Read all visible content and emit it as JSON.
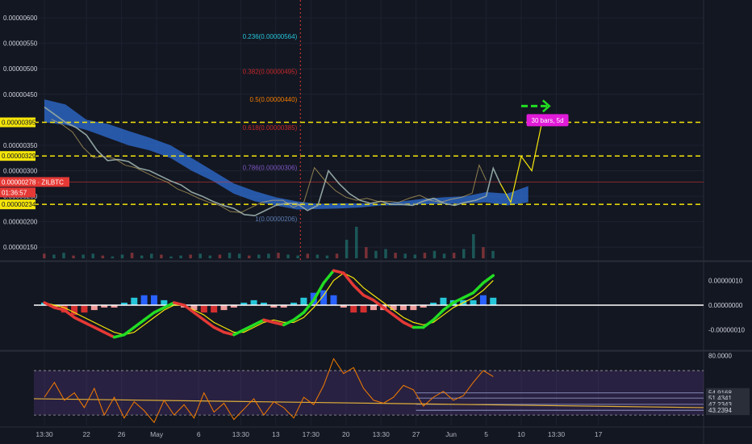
{
  "chart_data": {
    "type": "line",
    "symbol": "ZILBTC",
    "countdown": "01:36:57",
    "last_price": "0.00000278",
    "price_axis": {
      "ticks": [
        "0.00000600",
        "0.00000550",
        "0.00000500",
        "0.00000450",
        "0.00000350",
        "0.00000300",
        "0.00000250",
        "0.00000200",
        "0.00000150"
      ],
      "tick_values": [
        600,
        550,
        500,
        450,
        350,
        300,
        250,
        200,
        150
      ],
      "ylim": [
        125,
        635
      ]
    },
    "horizontal_levels": [
      {
        "label": "0.00000395",
        "value": 395
      },
      {
        "label": "0.00000329",
        "value": 329
      },
      {
        "label": "0.00000234",
        "value": 234
      }
    ],
    "fib_levels": [
      {
        "label": "0.236(0.00000564)",
        "value": 564,
        "color": "#26c6da"
      },
      {
        "label": "0.382(0.00000495)",
        "value": 495,
        "color": "#c62828"
      },
      {
        "label": "0.5(0.00000440)",
        "value": 440,
        "color": "#f57c00"
      },
      {
        "label": "0.618(0.00000385)",
        "value": 385,
        "color": "#c62828"
      },
      {
        "label": "0.786(0.00000306)",
        "value": 306,
        "color": "#7e57c2"
      },
      {
        "label": "1(0.00000206)",
        "value": 206,
        "color": "#5b7bb0"
      }
    ],
    "bars_label": "30 bars, 5d",
    "time_axis": {
      "labels": [
        "13:30",
        "22",
        "26",
        "May",
        "6",
        "13:30",
        "13",
        "17:30",
        "20",
        "13:30",
        "27",
        "Jun",
        "5",
        "10",
        "13:30",
        "17"
      ],
      "positions": [
        0.0,
        12,
        22,
        32,
        44,
        56,
        66,
        76,
        86,
        96,
        106,
        116,
        126,
        136,
        146,
        158
      ],
      "range": [
        -3,
        188
      ]
    },
    "price_series": {
      "x": [
        0,
        3,
        6,
        9,
        12,
        15,
        18,
        21,
        24,
        27,
        30,
        33,
        36,
        39,
        42,
        45,
        48,
        51,
        54,
        57,
        60,
        63,
        66,
        69,
        72,
        75,
        78,
        81,
        84,
        87,
        90,
        93,
        96,
        99,
        102,
        105,
        108,
        111,
        114,
        117,
        120,
        123,
        126,
        128,
        130
      ],
      "y": [
        425,
        410,
        395,
        385,
        370,
        340,
        320,
        322,
        318,
        305,
        300,
        290,
        280,
        272,
        258,
        250,
        240,
        232,
        226,
        214,
        212,
        222,
        232,
        236,
        236,
        222,
        232,
        300,
        275,
        255,
        242,
        236,
        240,
        234,
        234,
        232,
        240,
        246,
        236,
        232,
        238,
        242,
        250,
        305,
        275
      ]
    },
    "projection": {
      "x": [
        130,
        133,
        136,
        139,
        142,
        145
      ],
      "y": [
        275,
        238,
        328,
        300,
        398,
        398
      ]
    },
    "cloud": {
      "x": [
        0,
        6,
        12,
        18,
        24,
        30,
        36,
        42,
        48,
        54,
        60,
        66,
        72,
        78,
        84,
        90,
        96,
        102,
        108,
        114,
        120,
        126,
        132,
        138
      ],
      "upper": [
        440,
        430,
        400,
        392,
        378,
        365,
        350,
        325,
        300,
        275,
        260,
        248,
        240,
        235,
        236,
        236,
        235,
        240,
        245,
        248,
        250,
        258,
        255,
        270
      ],
      "lower": [
        395,
        390,
        380,
        365,
        350,
        340,
        325,
        300,
        280,
        255,
        240,
        232,
        224,
        225,
        226,
        228,
        232,
        232,
        234,
        235,
        236,
        238,
        232,
        238
      ]
    },
    "volume": [
      5,
      4,
      6,
      3,
      4,
      5,
      3,
      2,
      4,
      6,
      3,
      5,
      4,
      2,
      3,
      4,
      5,
      3,
      4,
      6,
      5,
      3,
      4,
      5,
      6,
      4,
      3,
      5,
      4,
      3,
      5,
      20,
      34,
      12,
      8,
      10,
      6,
      5,
      4,
      6,
      8,
      5,
      6,
      10,
      26,
      12,
      8
    ],
    "macd": {
      "ticks": [
        "0.00000010",
        "0.00000000",
        "-0.00000010"
      ],
      "tick_values": [
        10,
        0,
        -10
      ],
      "ylim": [
        -18,
        17
      ],
      "macd_line": [
        1,
        -1,
        -2,
        -5,
        -7,
        -9,
        -11,
        -13,
        -12,
        -9,
        -6,
        -3,
        -1,
        1,
        0,
        -3,
        -6,
        -9,
        -11,
        -12,
        -10,
        -8,
        -6,
        -7,
        -8,
        -6,
        -3,
        2,
        9,
        14,
        13,
        8,
        4,
        2,
        -1,
        -4,
        -7,
        -9,
        -9,
        -6,
        -2,
        1,
        3,
        5,
        9,
        12
      ],
      "signal_line": [
        1,
        0,
        -1,
        -3,
        -5,
        -7,
        -9,
        -11,
        -12,
        -11,
        -8,
        -5,
        -2,
        0,
        0,
        -2,
        -4,
        -7,
        -9,
        -11,
        -11,
        -9,
        -7,
        -6,
        -7,
        -7,
        -5,
        -1,
        4,
        10,
        13,
        11,
        7,
        4,
        1,
        -2,
        -5,
        -7,
        -8,
        -7,
        -4,
        -1,
        1,
        3,
        6,
        10
      ],
      "histogram": [
        1,
        -1,
        -3,
        -4,
        -3,
        -2,
        -1,
        -1,
        1,
        3,
        4,
        4,
        2,
        1,
        -1,
        -2,
        -3,
        -3,
        -2,
        -1,
        1,
        2,
        1,
        -1,
        -1,
        1,
        3,
        5,
        6,
        4,
        -1,
        -3,
        -3,
        -2,
        -2,
        -2,
        -2,
        -2,
        -1,
        1,
        3,
        2,
        2,
        2,
        4,
        3
      ]
    },
    "rsi": {
      "ticks": [
        "80.0000",
        "54.9168",
        "51.4341",
        "47.2343",
        "43.2394"
      ],
      "tick_values": [
        80,
        54.9168,
        51.4341,
        47.2343,
        43.2394
      ],
      "ylim": [
        33,
        82
      ],
      "values": [
        52,
        62,
        50,
        55,
        45,
        58,
        40,
        52,
        38,
        49,
        43,
        35,
        50,
        40,
        47,
        38,
        55,
        42,
        48,
        37,
        44,
        51,
        40,
        49,
        45,
        38,
        52,
        47,
        60,
        78,
        68,
        72,
        58,
        50,
        48,
        52,
        60,
        57,
        46,
        52,
        56,
        50,
        53,
        62,
        70,
        66
      ],
      "overbought": 70,
      "oversold": 40
    }
  }
}
